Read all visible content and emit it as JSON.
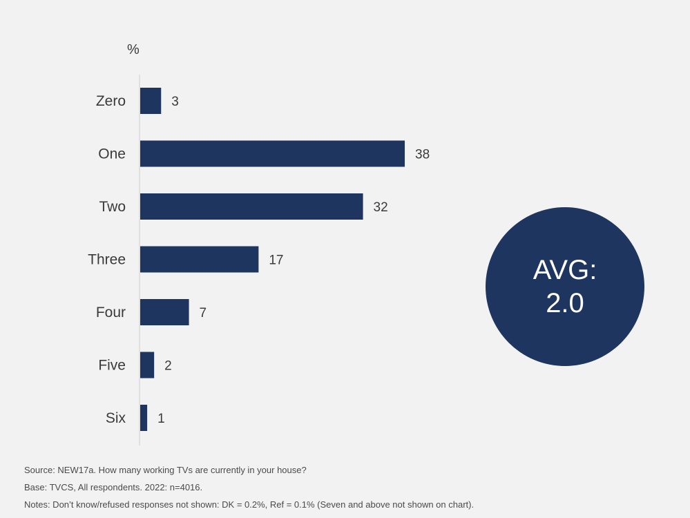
{
  "chart_data": {
    "type": "bar",
    "orientation": "horizontal",
    "unit_label": "%",
    "categories": [
      "Zero",
      "One",
      "Two",
      "Three",
      "Four",
      "Five",
      "Six"
    ],
    "values": [
      3,
      38,
      32,
      17,
      7,
      2,
      1
    ],
    "bar_color": "#1e3560",
    "grid": false
  },
  "badge": {
    "line1": "AVG:",
    "line2": "2.0",
    "color": "#1e3560"
  },
  "notes": {
    "source": "Source: NEW17a. How many working TVs are currently in your house?",
    "base": "Base: TVCS, All respondents.  2022: n=4016.",
    "notes": "Notes: Don’t know/refused responses not shown: DK = 0.2%, Ref = 0.1% (Seven and above not shown on chart)."
  }
}
